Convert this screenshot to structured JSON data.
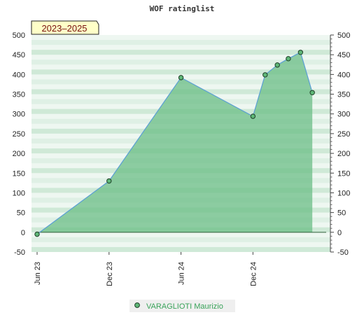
{
  "title": "WOF ratinglist",
  "period_badge": "2023–2025",
  "colors": {
    "plot_bg": "#eef7f1",
    "band_dark": "#cfe9d7",
    "area_fill": "#6bbd86",
    "line": "#5a9fd4",
    "marker_fill": "#5fb878",
    "marker_stroke": "#1d3d26",
    "badge_bg": "#ffffc8",
    "legend_text": "#3aa35a"
  },
  "legend": {
    "series_name": "VARAGLIOTI Maurizio"
  },
  "chart_data": {
    "type": "area",
    "title": "WOF ratinglist",
    "xlabel": "",
    "ylabel": "",
    "ylim": [
      -50,
      500
    ],
    "yticks": [
      -50,
      0,
      50,
      100,
      150,
      200,
      250,
      300,
      350,
      400,
      450,
      500
    ],
    "xlim": [
      "2023-06-01",
      "2025-06-16"
    ],
    "xticks": [
      {
        "date": "2023-06-01",
        "label": "Jun 23"
      },
      {
        "date": "2023-12-01",
        "label": "Dec 23"
      },
      {
        "date": "2024-06-01",
        "label": "Jun 24"
      },
      {
        "date": "2024-12-01",
        "label": "Dec 24"
      }
    ],
    "grid": true,
    "legend_position": "bottom",
    "series": [
      {
        "name": "VARAGLIOTI Maurizio",
        "points": [
          {
            "x": "2023-06-01",
            "y": -5
          },
          {
            "x": "2023-12-01",
            "y": 130
          },
          {
            "x": "2024-06-01",
            "y": 392
          },
          {
            "x": "2024-12-01",
            "y": 294
          },
          {
            "x": "2025-01-01",
            "y": 399
          },
          {
            "x": "2025-02-01",
            "y": 424
          },
          {
            "x": "2025-03-01",
            "y": 440
          },
          {
            "x": "2025-04-01",
            "y": 456
          },
          {
            "x": "2025-05-01",
            "y": 354
          }
        ]
      }
    ]
  }
}
